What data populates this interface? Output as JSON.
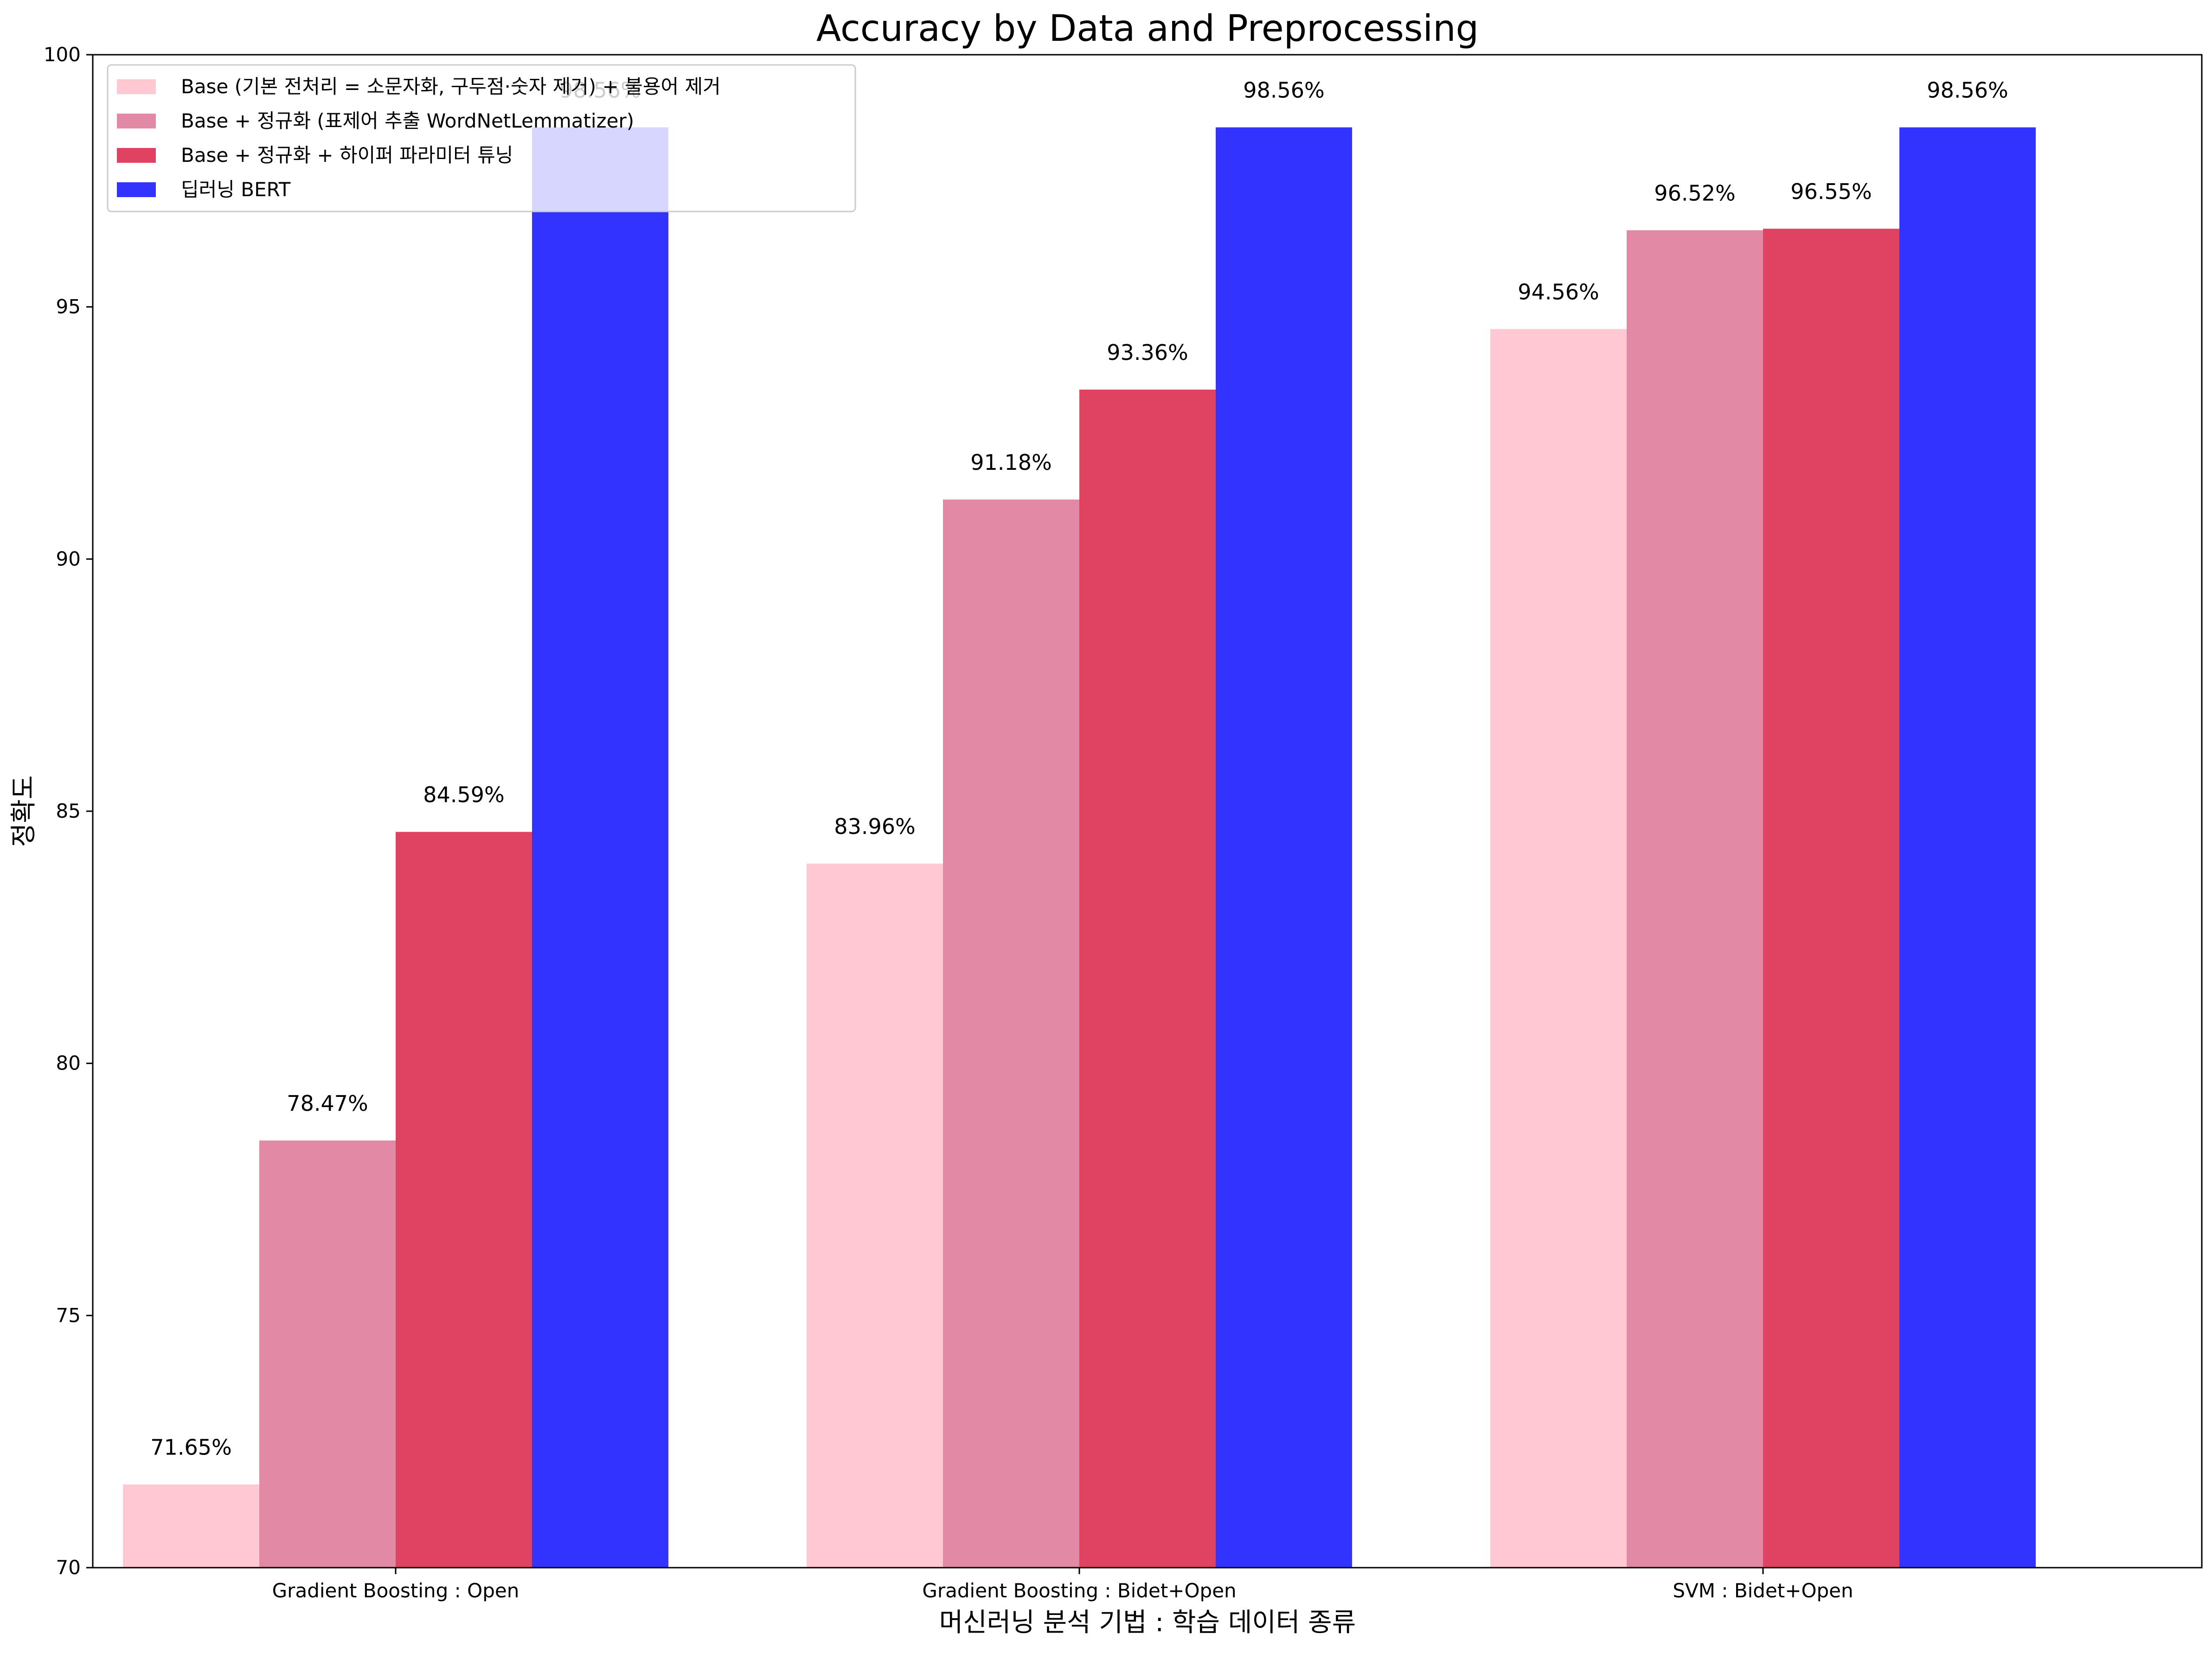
{
  "chart_data": {
    "type": "bar",
    "title": "Accuracy by Data and Preprocessing",
    "xlabel": "머신러닝 분석 기법 : 학습 데이터 종류",
    "ylabel": "정확도",
    "ylim": [
      70,
      100
    ],
    "yticks": [
      "70",
      "75",
      "80",
      "85",
      "90",
      "95",
      "100"
    ],
    "categories": [
      "Gradient Boosting : Open",
      "Gradient Boosting : Bidet+Open",
      "SVM : Bidet+Open"
    ],
    "series": [
      {
        "name": "Base (기본 전처리 = 소문자화, 구두점·숫자 제거) + 불용어 제거",
        "color": "#ffc8d2",
        "values": [
          71.65,
          83.96,
          94.56
        ],
        "labels": [
          "71.65%",
          "83.96%",
          "94.56%"
        ]
      },
      {
        "name": "Base + 정규화 (표제어 추출 WordNetLemmatizer)",
        "color": "#e289a5",
        "values": [
          78.47,
          91.18,
          96.52
        ],
        "labels": [
          "78.47%",
          "91.18%",
          "96.52%"
        ]
      },
      {
        "name": "Base + 정규화 + 하이퍼 파라미터 튜닝",
        "color": "#e04362",
        "values": [
          84.59,
          93.36,
          96.55
        ],
        "labels": [
          "84.59%",
          "93.36%",
          "96.55%"
        ]
      },
      {
        "name": "딥러닝 BERT",
        "color": "#3333ff",
        "values": [
          98.56,
          98.56,
          98.56
        ],
        "labels": [
          "98.56%",
          "98.56%",
          "98.56%"
        ]
      }
    ],
    "grid": false,
    "legend_position": "upper-left"
  }
}
